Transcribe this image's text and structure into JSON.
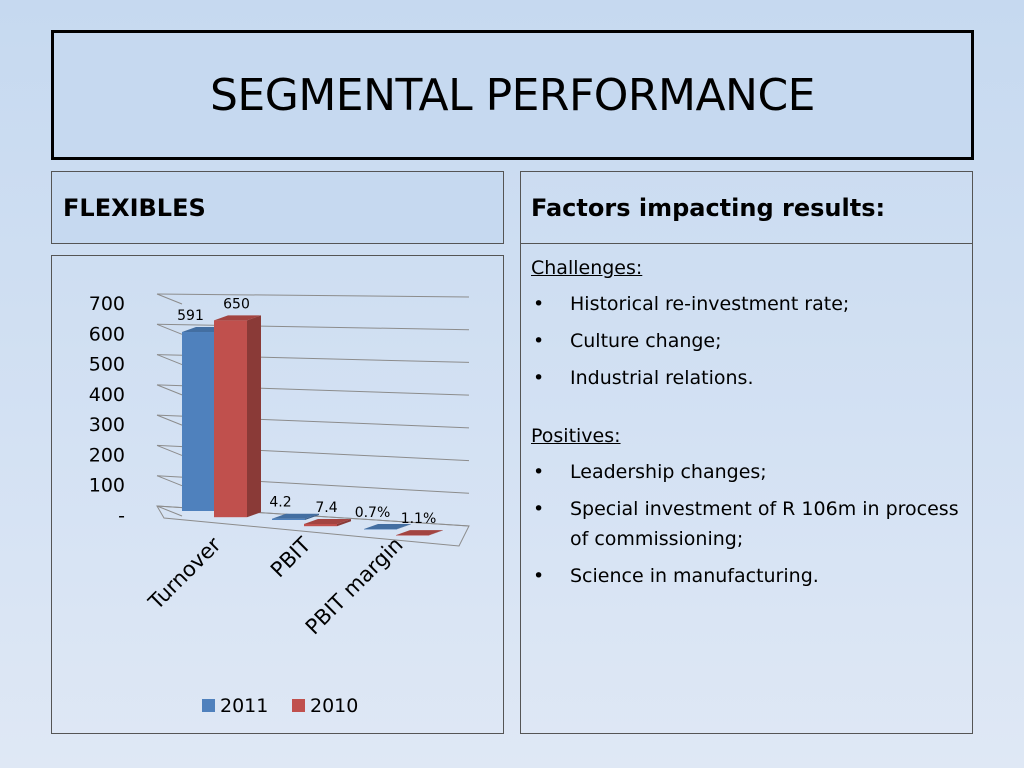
{
  "slide": {
    "title": "SEGMENTAL PERFORMANCE",
    "left_heading": "FLEXIBLES",
    "right_heading": "Factors impacting results:"
  },
  "factors": {
    "challenges": {
      "label": "Challenges:",
      "items": [
        "Historical re-investment rate;",
        "Culture change;",
        "Industrial relations."
      ]
    },
    "positives": {
      "label": "Positives:",
      "items": [
        "Leadership changes;",
        "Special investment of R 106m in process of commissioning;",
        "Science in manufacturing."
      ]
    },
    "bullet_symbol": "•"
  },
  "chart_data": {
    "type": "bar",
    "style": "3d-clustered-column",
    "categories": [
      "Turnover",
      "PBIT",
      "PBIT margin"
    ],
    "series": [
      {
        "name": "2011",
        "values": [
          591,
          4.2,
          0.7
        ],
        "labels": [
          "591",
          "4.2",
          "0.7%"
        ],
        "color": "#4f81bd"
      },
      {
        "name": "2010",
        "values": [
          650,
          7.4,
          1.1
        ],
        "labels": [
          "650",
          "7.4",
          "1.1%"
        ],
        "color": "#c0504d"
      }
    ],
    "y_ticks": [
      "-",
      "100",
      "200",
      "300",
      "400",
      "500",
      "600",
      "700"
    ],
    "ylim": [
      0,
      700
    ],
    "grid": true,
    "legend_position": "bottom"
  }
}
